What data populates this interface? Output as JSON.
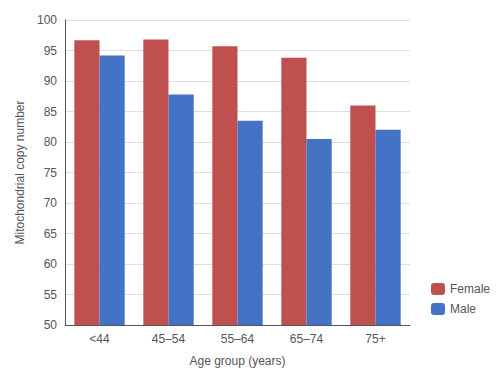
{
  "chart_data": {
    "type": "bar",
    "xlabel": "Age group (years)",
    "ylabel": "Mitochondrial copy number",
    "categories": [
      "<44",
      "45–54",
      "55–64",
      "65–74",
      "75+"
    ],
    "series": [
      {
        "name": "Female",
        "color": "#C0504D",
        "values": [
          96.7,
          96.8,
          95.7,
          93.8,
          86.0
        ]
      },
      {
        "name": "Male",
        "color": "#4472C4",
        "values": [
          94.2,
          87.8,
          83.5,
          80.5,
          82.0
        ]
      }
    ],
    "ylim": [
      50,
      100
    ],
    "yticks": [
      50,
      55,
      60,
      65,
      70,
      75,
      80,
      85,
      90,
      95,
      100
    ],
    "grid": true,
    "legend": "lower right"
  }
}
